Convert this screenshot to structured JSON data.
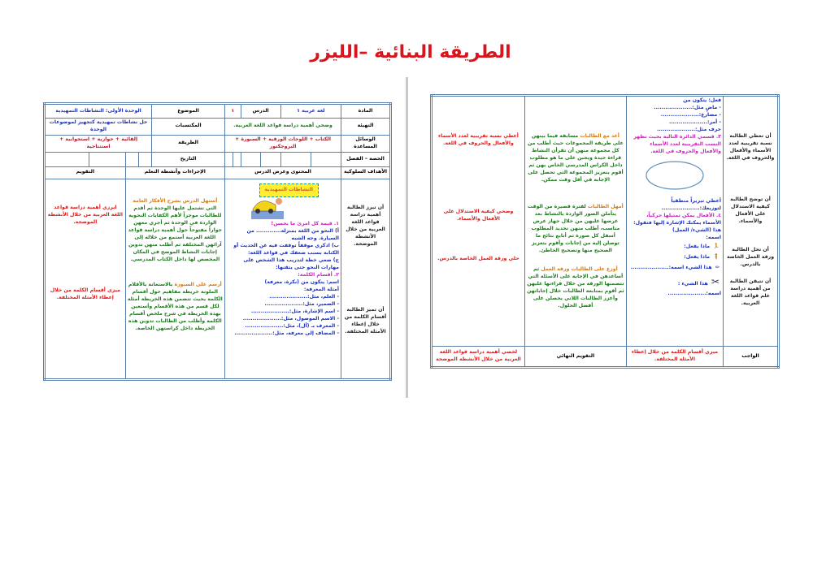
{
  "title": "الطريقة البنائية –الليزر",
  "left": {
    "header": {
      "subject_label": "المادة",
      "subject": "لغة عربية ١",
      "lesson_label": "الدرس",
      "lesson": "١",
      "topic_label": "الموضوع",
      "topic": "الوحدة الأولى: النشاطات التمهيدية",
      "intro_label": "التهيئة",
      "intro": "وضحي أهمية دراسة قواعد اللغة العربية.",
      "outcomes_label": "المكتسبات",
      "outcomes": "حل نشاطات تمهيدية كتجهيز لموضوعات الوحدة",
      "aids_label": "الوسائل المساعدة",
      "aids": "الكتاب + اللوحات الورقية + السبورة + البروجكتور",
      "method_label": "الطريقة",
      "method": "إلقائية + حوارية + استجوابية + استنتاجية",
      "period_label": "الحصة – الفصل",
      "date_label": "التاريخ",
      "objectives_label": "الأهداف السلوكية",
      "content_label": "المحتوى وعرض الدرس",
      "procedures_label": "الإجراءات وأنشطة التعلم",
      "evaluation_label": "التقويم"
    },
    "banner": "النشاطات التمهيدية",
    "objectives": [
      "أن تبرز الطالبة أهمية دراسة قواعد اللغة العربية من خلال الأنشطة الموضحة.",
      "أن تميز الطالبة أقسام الكلمة من خلال إعطاء الأمثلة المختلفة."
    ],
    "content": [
      "١. قيمة كل امرئ ما يحسن!",
      "أ) النحو من اللغة بمنزلة............. من السيارة. وجه الشبه",
      "ب) اذكري موقفاً توقفت فيه عن الحديث أو الكتابة بسبب ضعفك في قواعد اللغة:",
      "ج) ضعي خطة لتدريب هذا الشخص على مهارات النحو حتى يتقنها:",
      "٢. أقسام الكلمة:",
      "اسم: يتكون من (نكرة، معرفة)",
      "أمثلة المعرفة:",
      "- العلم، مثل:....................",
      "- الضمير، مثل:....................",
      "- اسم الإشارة، مثل:....................",
      "- الاسم الموصول، مثل:....................",
      "- المعرف بـ (أل)، مثل:....................",
      "- المضاف إلى معرفة، مثل:...................."
    ],
    "procedures": [
      {
        "lead": "أستهل الدرس بشرح الأفكار العامة",
        "rest": " التي تشتمل عليها الوحدة ثم أقدم للطالبات موجزاً لأهم الكفايات النحوية الواردة في الوحدة ثم أجري معهن حواراً مفتوحاً حول أهمية دراسة قواعد اللغة العربية أستمع من خلاله إلى آرائهن المختلفة ثم أطلب منهن تدوين إجابات النشاط الموضح في المكان المخصص لها داخل الكتاب المدرسي."
      },
      {
        "lead": "أرسم على السبورة",
        "rest": " بالاستعانة بالأقلام الملونة خريطة مفاهيم حول أقسام الكلمة بحيث تتضمن هذه الخريطة أمثلة لكل قسم من هذه الأقسام وأستعين بهذه الخريطة في شرح ملخص أقسام الكلمة وأطلب من الطالبات تدوين هذه الخريطة داخل كراستهن الخاصة."
      }
    ],
    "evaluation": [
      "ابرزي أهمية دراسة قواعد اللغة العربية من خلال الأنشطة الموضحة.",
      "ميزي أقسام الكلمة من خلال إعطاء الأمثلة المختلفة."
    ]
  },
  "right": {
    "objectives": [
      "أن تعطي الطالبة نسبة تقريبية لعدد الأسماء والأفعال والحروف في اللغة.",
      "أن توضح الطالبة كيفية الاستدلال على الأفعال والأسماء.",
      "أن تحل الطالبة ورقة العمل الخاصة بالدرس.",
      "أن تتيقن الطالبة من أهمية دراسة علم قواعد اللغة العربية."
    ],
    "content": [
      "فعل: يتكون من",
      "- ماضٍ مثل:....................",
      "- مضارع:....................",
      "- أمر:....................",
      "حرف مثل:....................",
      "٣. قسمي الدائرة التالية بحيث تظهر النسب التقريبية لعدد الأسماء والأفعال والحروف في اللغة.",
      "أعطي تبريراً منطقياً لتوزيعك:....................",
      "٤. الأفعال يمكن تمثيلها حركياً،",
      "الأسماء يمكنك الإشارة إليها فتقول: هذا (الشيء/ العمل)",
      "اسمه:",
      "ماذا يفعل:",
      "ماذا يفعل:",
      "هذا الشيء اسمه:....................",
      "هذا الشيء :",
      "اسمه:...................."
    ],
    "procedures": [
      {
        "lead": "أعد مع الطالبات",
        "rest": " مسابقة فيما بينهن على طريقة المجموعات حيث أطلب من كل مجموعة منهن أن تقرأن النشاط قراءة جيدة ويجبن على ما هو مطلوب داخل الكراس المدرسي الخاص بهن ثم أقوم بتعزيز المجموعة التي تحصل على الإجابة في أقل وقت ممكن."
      },
      {
        "lead": "أمهل الطالبات",
        "rest": " لفترة قصيرة من الوقت يتأملن الصور الواردة بالنشاط بعد عرضها عليهن من خلال جهاز عرض مناسب، أطلب منهن تحديد المطلوب أسفل كل صورة ثم أتابع نتائج ما توصلن إليه من إجابات وأقوم بتعزيز الصحيح منها وتصحيح الخاطئ."
      },
      {
        "lead": "أوزع على الطالبات ورقة العمل",
        "rest": " ثم أساعدهن في الإجابة على الأسئلة التي تتضمنها الورقة من خلال قراءتها عليهن ثم أقوم بمتابعة الطالبات خلال إجاباتهن وأعزز الطالبات اللاتي يحصلن على أفضل الحلول."
      }
    ],
    "evaluation": [
      "أعطي نسبة تقريبية لعدد الأسماء والأفعال والحروف في اللغة.",
      "وضحي كيفية الاستدلال على الأفعال والأسماء.",
      "حلي ورقة العمل الخاصة بالدرس."
    ],
    "footer": {
      "homework_label": "الواجب",
      "homework": "ميزي أقسام الكلمة من خلال إعطاء الأمثلة المختلفة.",
      "final_label": "التقويم النهائي",
      "final": "لخصي أهمية دراسة قواعد اللغة العربية من خلال الأنشطة الموضحة"
    }
  }
}
